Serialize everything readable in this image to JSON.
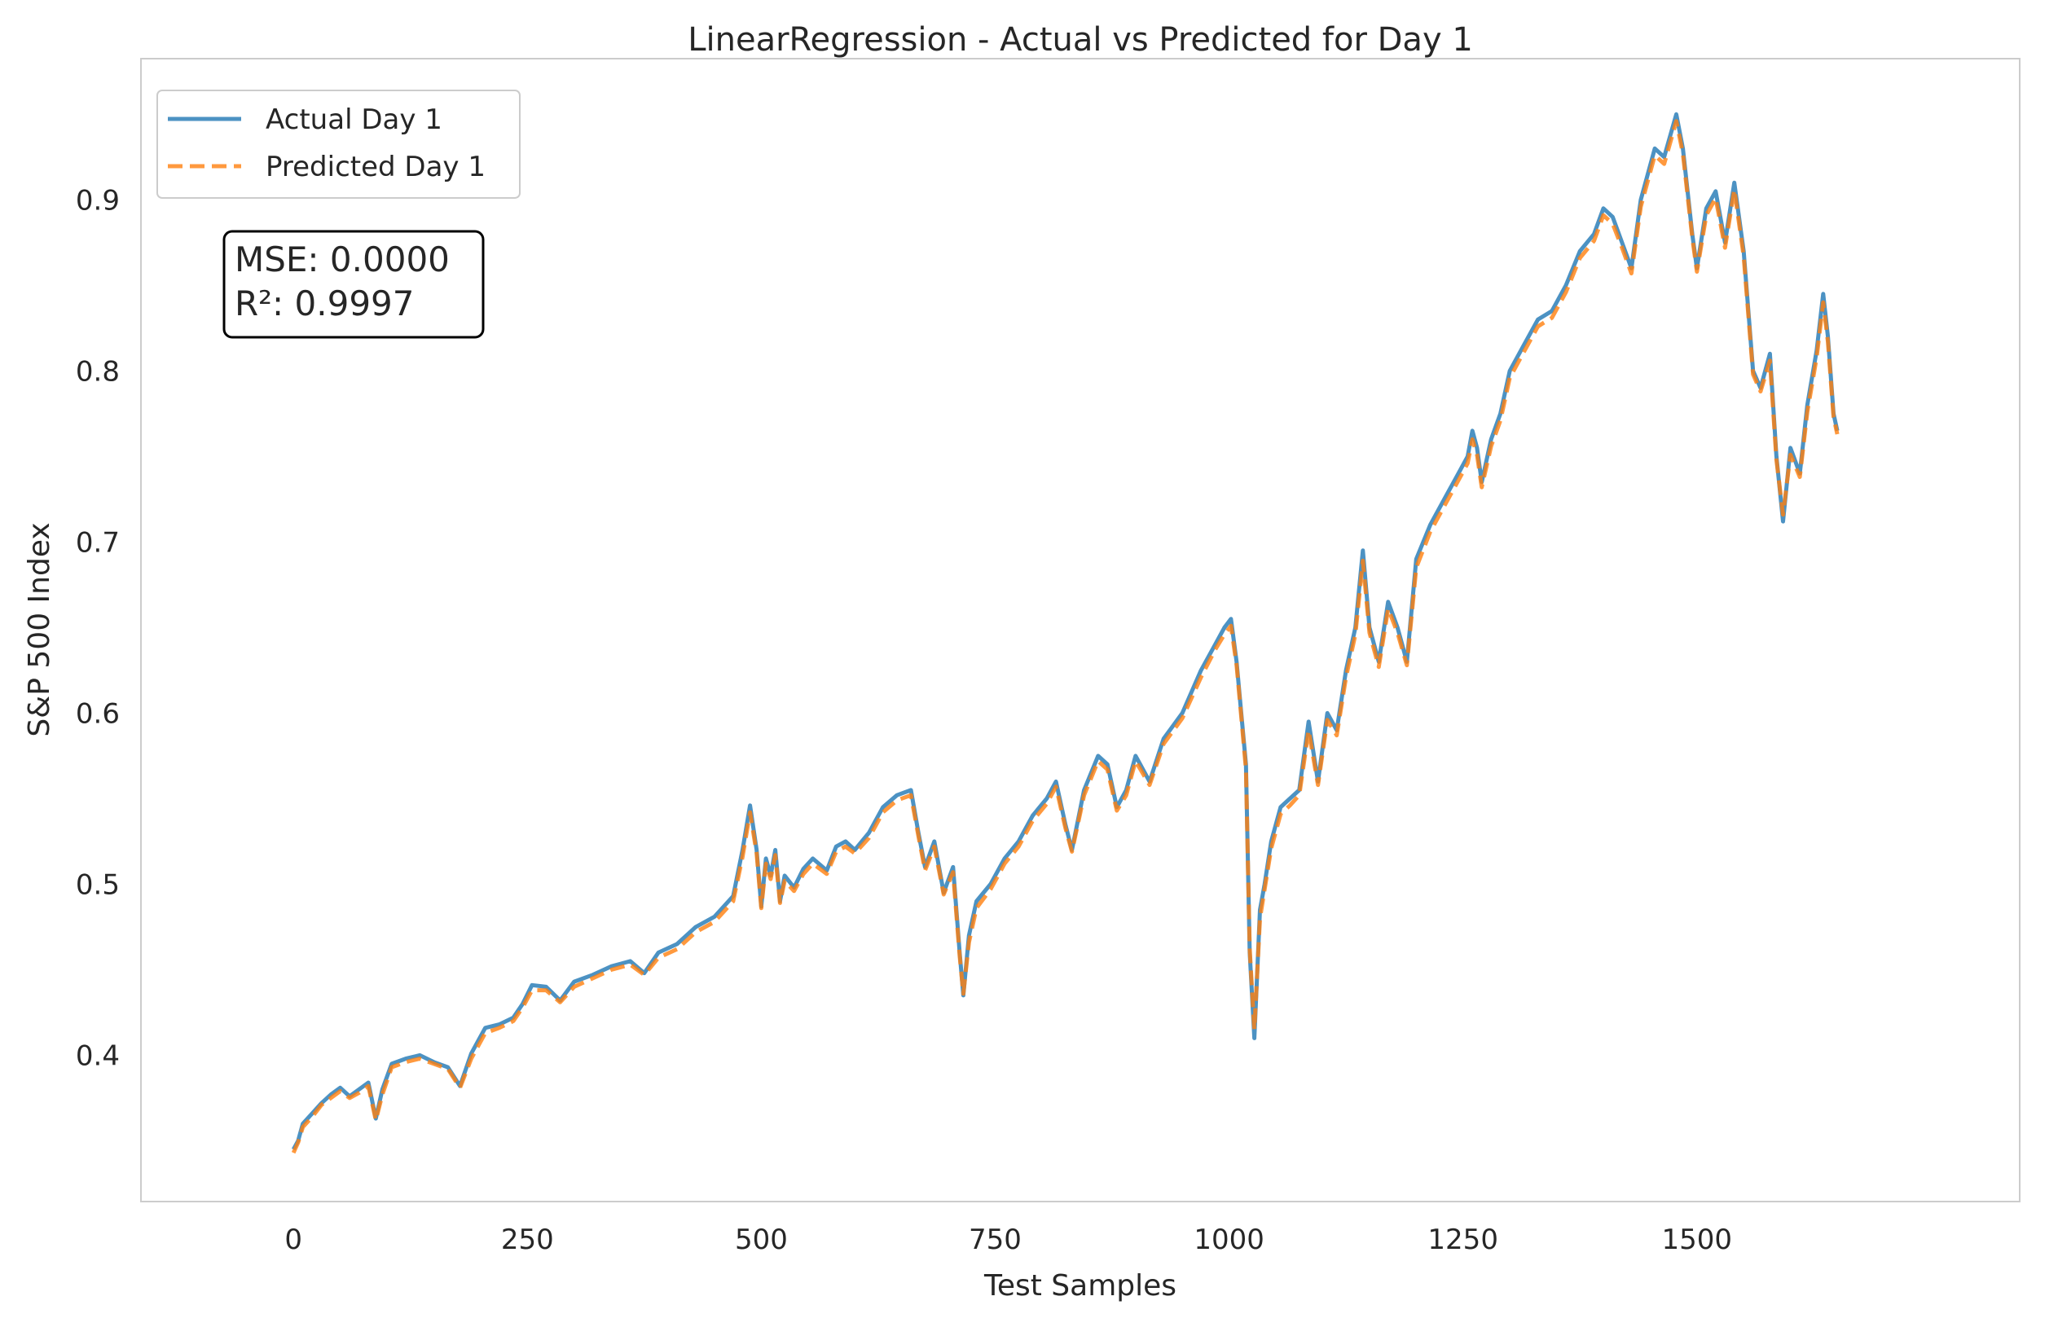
{
  "chart_data": {
    "type": "line",
    "title": "LinearRegression - Actual vs Predicted for Day 1",
    "xlabel": "Test Samples",
    "ylabel": "S&P 500 Index",
    "xlim": [
      -163,
      1845
    ],
    "ylim": [
      0.3145,
      0.9825
    ],
    "xticks": [
      0,
      250,
      500,
      750,
      1000,
      1250,
      1500
    ],
    "yticks": [
      0.4,
      0.5,
      0.6,
      0.7,
      0.8,
      0.9
    ],
    "ytick_labels": [
      "0.4",
      "0.5",
      "0.6",
      "0.7",
      "0.8",
      "0.9"
    ],
    "grid": false,
    "legend_position": "upper-left",
    "annotation": [
      "MSE: 0.0000",
      "R²: 0.9997"
    ],
    "series": [
      {
        "name": "Actual Day 1",
        "color": "#1f77b4",
        "style": "solid",
        "points": [
          [
            0,
            0.345
          ],
          [
            5,
            0.35
          ],
          [
            10,
            0.36
          ],
          [
            20,
            0.366
          ],
          [
            30,
            0.372
          ],
          [
            40,
            0.377
          ],
          [
            50,
            0.381
          ],
          [
            60,
            0.376
          ],
          [
            70,
            0.38
          ],
          [
            80,
            0.384
          ],
          [
            88,
            0.363
          ],
          [
            95,
            0.38
          ],
          [
            105,
            0.395
          ],
          [
            120,
            0.398
          ],
          [
            135,
            0.4
          ],
          [
            150,
            0.396
          ],
          [
            165,
            0.393
          ],
          [
            178,
            0.382
          ],
          [
            190,
            0.401
          ],
          [
            205,
            0.416
          ],
          [
            220,
            0.418
          ],
          [
            235,
            0.422
          ],
          [
            245,
            0.43
          ],
          [
            255,
            0.441
          ],
          [
            270,
            0.44
          ],
          [
            285,
            0.432
          ],
          [
            300,
            0.443
          ],
          [
            320,
            0.447
          ],
          [
            340,
            0.452
          ],
          [
            360,
            0.455
          ],
          [
            375,
            0.448
          ],
          [
            390,
            0.46
          ],
          [
            410,
            0.465
          ],
          [
            430,
            0.475
          ],
          [
            450,
            0.481
          ],
          [
            470,
            0.493
          ],
          [
            480,
            0.52
          ],
          [
            488,
            0.546
          ],
          [
            495,
            0.52
          ],
          [
            500,
            0.487
          ],
          [
            505,
            0.515
          ],
          [
            510,
            0.505
          ],
          [
            515,
            0.52
          ],
          [
            520,
            0.49
          ],
          [
            525,
            0.505
          ],
          [
            535,
            0.498
          ],
          [
            545,
            0.509
          ],
          [
            555,
            0.515
          ],
          [
            570,
            0.508
          ],
          [
            580,
            0.522
          ],
          [
            590,
            0.525
          ],
          [
            600,
            0.52
          ],
          [
            615,
            0.53
          ],
          [
            630,
            0.545
          ],
          [
            645,
            0.552
          ],
          [
            660,
            0.555
          ],
          [
            668,
            0.53
          ],
          [
            675,
            0.51
          ],
          [
            685,
            0.525
          ],
          [
            695,
            0.495
          ],
          [
            705,
            0.51
          ],
          [
            712,
            0.46
          ],
          [
            716,
            0.435
          ],
          [
            722,
            0.47
          ],
          [
            730,
            0.49
          ],
          [
            745,
            0.5
          ],
          [
            760,
            0.515
          ],
          [
            775,
            0.525
          ],
          [
            790,
            0.54
          ],
          [
            805,
            0.55
          ],
          [
            815,
            0.56
          ],
          [
            825,
            0.535
          ],
          [
            832,
            0.52
          ],
          [
            845,
            0.555
          ],
          [
            860,
            0.575
          ],
          [
            870,
            0.57
          ],
          [
            880,
            0.545
          ],
          [
            890,
            0.555
          ],
          [
            900,
            0.575
          ],
          [
            915,
            0.56
          ],
          [
            930,
            0.585
          ],
          [
            950,
            0.6
          ],
          [
            970,
            0.625
          ],
          [
            985,
            0.64
          ],
          [
            995,
            0.65
          ],
          [
            1002,
            0.655
          ],
          [
            1008,
            0.63
          ],
          [
            1013,
            0.6
          ],
          [
            1018,
            0.57
          ],
          [
            1022,
            0.46
          ],
          [
            1027,
            0.41
          ],
          [
            1033,
            0.485
          ],
          [
            1038,
            0.5
          ],
          [
            1045,
            0.525
          ],
          [
            1055,
            0.545
          ],
          [
            1065,
            0.55
          ],
          [
            1075,
            0.555
          ],
          [
            1085,
            0.595
          ],
          [
            1095,
            0.56
          ],
          [
            1105,
            0.6
          ],
          [
            1115,
            0.59
          ],
          [
            1125,
            0.625
          ],
          [
            1135,
            0.65
          ],
          [
            1143,
            0.695
          ],
          [
            1150,
            0.65
          ],
          [
            1160,
            0.63
          ],
          [
            1170,
            0.665
          ],
          [
            1180,
            0.65
          ],
          [
            1190,
            0.63
          ],
          [
            1200,
            0.69
          ],
          [
            1215,
            0.71
          ],
          [
            1230,
            0.725
          ],
          [
            1245,
            0.74
          ],
          [
            1255,
            0.75
          ],
          [
            1260,
            0.765
          ],
          [
            1265,
            0.755
          ],
          [
            1270,
            0.735
          ],
          [
            1280,
            0.76
          ],
          [
            1290,
            0.775
          ],
          [
            1300,
            0.8
          ],
          [
            1315,
            0.815
          ],
          [
            1330,
            0.83
          ],
          [
            1345,
            0.835
          ],
          [
            1360,
            0.85
          ],
          [
            1375,
            0.87
          ],
          [
            1390,
            0.88
          ],
          [
            1400,
            0.895
          ],
          [
            1410,
            0.89
          ],
          [
            1420,
            0.875
          ],
          [
            1430,
            0.86
          ],
          [
            1440,
            0.9
          ],
          [
            1455,
            0.93
          ],
          [
            1465,
            0.925
          ],
          [
            1478,
            0.95
          ],
          [
            1485,
            0.93
          ],
          [
            1495,
            0.88
          ],
          [
            1500,
            0.86
          ],
          [
            1510,
            0.895
          ],
          [
            1520,
            0.905
          ],
          [
            1530,
            0.875
          ],
          [
            1540,
            0.91
          ],
          [
            1550,
            0.87
          ],
          [
            1560,
            0.8
          ],
          [
            1568,
            0.79
          ],
          [
            1578,
            0.81
          ],
          [
            1585,
            0.75
          ],
          [
            1592,
            0.712
          ],
          [
            1600,
            0.755
          ],
          [
            1610,
            0.74
          ],
          [
            1618,
            0.78
          ],
          [
            1628,
            0.812
          ],
          [
            1635,
            0.845
          ],
          [
            1640,
            0.82
          ],
          [
            1646,
            0.775
          ],
          [
            1650,
            0.765
          ]
        ]
      },
      {
        "name": "Predicted Day 1",
        "color": "#ff7f0e",
        "style": "dashed",
        "points": [
          [
            0,
            0.343
          ],
          [
            5,
            0.349
          ],
          [
            10,
            0.358
          ],
          [
            20,
            0.364
          ],
          [
            30,
            0.371
          ],
          [
            40,
            0.375
          ],
          [
            50,
            0.379
          ],
          [
            60,
            0.375
          ],
          [
            70,
            0.378
          ],
          [
            80,
            0.382
          ],
          [
            88,
            0.362
          ],
          [
            95,
            0.377
          ],
          [
            105,
            0.393
          ],
          [
            120,
            0.396
          ],
          [
            135,
            0.398
          ],
          [
            150,
            0.395
          ],
          [
            165,
            0.392
          ],
          [
            178,
            0.381
          ],
          [
            190,
            0.398
          ],
          [
            205,
            0.413
          ],
          [
            220,
            0.416
          ],
          [
            235,
            0.42
          ],
          [
            245,
            0.428
          ],
          [
            255,
            0.438
          ],
          [
            270,
            0.438
          ],
          [
            285,
            0.431
          ],
          [
            300,
            0.44
          ],
          [
            320,
            0.445
          ],
          [
            340,
            0.45
          ],
          [
            360,
            0.453
          ],
          [
            375,
            0.447
          ],
          [
            390,
            0.457
          ],
          [
            410,
            0.462
          ],
          [
            430,
            0.472
          ],
          [
            450,
            0.478
          ],
          [
            470,
            0.49
          ],
          [
            480,
            0.516
          ],
          [
            488,
            0.542
          ],
          [
            495,
            0.518
          ],
          [
            500,
            0.486
          ],
          [
            505,
            0.512
          ],
          [
            510,
            0.503
          ],
          [
            515,
            0.517
          ],
          [
            520,
            0.489
          ],
          [
            525,
            0.502
          ],
          [
            535,
            0.496
          ],
          [
            545,
            0.506
          ],
          [
            555,
            0.512
          ],
          [
            570,
            0.506
          ],
          [
            580,
            0.519
          ],
          [
            590,
            0.522
          ],
          [
            600,
            0.518
          ],
          [
            615,
            0.527
          ],
          [
            630,
            0.542
          ],
          [
            645,
            0.549
          ],
          [
            660,
            0.552
          ],
          [
            668,
            0.528
          ],
          [
            675,
            0.508
          ],
          [
            685,
            0.522
          ],
          [
            695,
            0.494
          ],
          [
            705,
            0.507
          ],
          [
            712,
            0.458
          ],
          [
            716,
            0.436
          ],
          [
            722,
            0.466
          ],
          [
            730,
            0.486
          ],
          [
            745,
            0.497
          ],
          [
            760,
            0.512
          ],
          [
            775,
            0.522
          ],
          [
            790,
            0.537
          ],
          [
            805,
            0.547
          ],
          [
            815,
            0.557
          ],
          [
            825,
            0.533
          ],
          [
            832,
            0.519
          ],
          [
            845,
            0.552
          ],
          [
            860,
            0.572
          ],
          [
            870,
            0.567
          ],
          [
            880,
            0.543
          ],
          [
            890,
            0.552
          ],
          [
            900,
            0.572
          ],
          [
            915,
            0.558
          ],
          [
            930,
            0.582
          ],
          [
            950,
            0.597
          ],
          [
            970,
            0.621
          ],
          [
            985,
            0.637
          ],
          [
            995,
            0.646
          ],
          [
            1002,
            0.651
          ],
          [
            1008,
            0.628
          ],
          [
            1013,
            0.598
          ],
          [
            1018,
            0.567
          ],
          [
            1022,
            0.462
          ],
          [
            1027,
            0.415
          ],
          [
            1033,
            0.48
          ],
          [
            1038,
            0.497
          ],
          [
            1045,
            0.521
          ],
          [
            1055,
            0.541
          ],
          [
            1065,
            0.546
          ],
          [
            1075,
            0.552
          ],
          [
            1085,
            0.59
          ],
          [
            1095,
            0.558
          ],
          [
            1105,
            0.596
          ],
          [
            1115,
            0.587
          ],
          [
            1125,
            0.621
          ],
          [
            1135,
            0.646
          ],
          [
            1143,
            0.689
          ],
          [
            1150,
            0.647
          ],
          [
            1160,
            0.627
          ],
          [
            1170,
            0.661
          ],
          [
            1180,
            0.647
          ],
          [
            1190,
            0.628
          ],
          [
            1200,
            0.685
          ],
          [
            1215,
            0.706
          ],
          [
            1230,
            0.721
          ],
          [
            1245,
            0.736
          ],
          [
            1255,
            0.746
          ],
          [
            1260,
            0.76
          ],
          [
            1265,
            0.751
          ],
          [
            1270,
            0.732
          ],
          [
            1280,
            0.756
          ],
          [
            1290,
            0.771
          ],
          [
            1300,
            0.796
          ],
          [
            1315,
            0.811
          ],
          [
            1330,
            0.826
          ],
          [
            1345,
            0.831
          ],
          [
            1360,
            0.846
          ],
          [
            1375,
            0.866
          ],
          [
            1390,
            0.876
          ],
          [
            1400,
            0.891
          ],
          [
            1410,
            0.886
          ],
          [
            1420,
            0.872
          ],
          [
            1430,
            0.857
          ],
          [
            1440,
            0.896
          ],
          [
            1455,
            0.926
          ],
          [
            1465,
            0.921
          ],
          [
            1478,
            0.946
          ],
          [
            1485,
            0.927
          ],
          [
            1495,
            0.878
          ],
          [
            1500,
            0.858
          ],
          [
            1510,
            0.891
          ],
          [
            1520,
            0.901
          ],
          [
            1530,
            0.872
          ],
          [
            1540,
            0.906
          ],
          [
            1550,
            0.867
          ],
          [
            1560,
            0.798
          ],
          [
            1568,
            0.788
          ],
          [
            1578,
            0.806
          ],
          [
            1585,
            0.748
          ],
          [
            1592,
            0.716
          ],
          [
            1600,
            0.751
          ],
          [
            1610,
            0.738
          ],
          [
            1618,
            0.776
          ],
          [
            1628,
            0.808
          ],
          [
            1635,
            0.84
          ],
          [
            1640,
            0.817
          ],
          [
            1646,
            0.773
          ],
          [
            1650,
            0.763
          ]
        ]
      }
    ]
  }
}
